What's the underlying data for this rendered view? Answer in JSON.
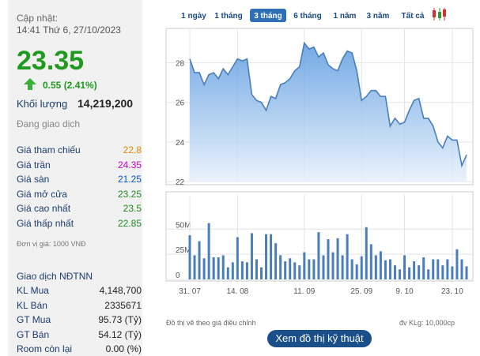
{
  "panel": {
    "updated_label": "Cập nhật:",
    "updated_time": "14:41 Thứ 6, 27/10/2023",
    "price": "23.35",
    "change": "0.55 (2.41%)",
    "volume_label": "Khối lượng",
    "volume": "14,219,200",
    "status": "Đang giao dịch",
    "prices": [
      [
        "Giá tham chiếu",
        "22.8"
      ],
      [
        "Giá trần",
        "24.35"
      ],
      [
        "Giá sàn",
        "21.25"
      ],
      [
        "Giá mở cửa",
        "23.25"
      ],
      [
        "Giá cao nhất",
        "23.5"
      ],
      [
        "Giá thấp nhất",
        "22.85"
      ]
    ],
    "unit": "Đơn vị giá: 1000 VNĐ",
    "foreign_title": "Giao dịch NĐTNN",
    "foreign": [
      [
        "KL Mua",
        "4,148,700"
      ],
      [
        "KL Bán",
        "2335671"
      ],
      [
        "GT Mua",
        "95.73 (Tỷ)"
      ],
      [
        "GT Bán",
        "54.12 (Tỷ)"
      ],
      [
        "Room còn lại",
        "0.00 (%)"
      ]
    ]
  },
  "tabs": [
    "1 ngày",
    "1 tháng",
    "3 tháng",
    "6 tháng",
    "1 năm",
    "3 năm",
    "Tất cả"
  ],
  "chart_data": [
    {
      "type": "area",
      "color": "#4a7ebb",
      "ylim": [
        22,
        29.7
      ],
      "yticks": [
        22,
        24,
        26,
        28
      ],
      "values": [
        28.2,
        27.5,
        27.5,
        26.9,
        27.4,
        27.5,
        27.2,
        27.7,
        27.4,
        27.8,
        28.2,
        28.1,
        28.2,
        26.4,
        26.1,
        26.0,
        25.6,
        26.3,
        26.2,
        26.9,
        27.0,
        27.2,
        27.6,
        27.8,
        29.0,
        28.7,
        28.8,
        28.3,
        28.5,
        27.9,
        27.7,
        27.6,
        28.2,
        28.6,
        28.5,
        27.6,
        26.1,
        26.3,
        26.6,
        26.6,
        26.3,
        26.3,
        24.8,
        25.2,
        24.9,
        25.0,
        25.6,
        26.1,
        26.2,
        25.2,
        25.2,
        24.8,
        24.0,
        23.7,
        24.3,
        24.1,
        24.1,
        22.8,
        23.35
      ]
    },
    {
      "type": "bar",
      "color": "#4a7ebb",
      "ylim": [
        0,
        84
      ],
      "yticks": [
        0,
        {
          "value": 25,
          "label": "25M"
        },
        {
          "value": 50,
          "label": "50M"
        }
      ],
      "categories": [
        "31. 07",
        null,
        null,
        null,
        null,
        null,
        null,
        null,
        null,
        null,
        "14. 08",
        null,
        null,
        null,
        null,
        null,
        null,
        null,
        null,
        null,
        null,
        null,
        null,
        null,
        "11. 09",
        null,
        null,
        null,
        null,
        null,
        null,
        null,
        null,
        null,
        null,
        null,
        "25. 09",
        null,
        null,
        null,
        null,
        null,
        null,
        null,
        null,
        "9. 10",
        null,
        null,
        null,
        null,
        null,
        null,
        null,
        null,
        null,
        "23. 10",
        null,
        null,
        null
      ],
      "values": [
        44,
        24,
        38,
        21,
        56,
        22,
        22,
        24,
        12,
        17,
        42,
        18,
        17,
        46,
        20,
        12,
        45,
        45,
        36,
        24,
        18,
        21,
        17,
        14,
        27,
        20,
        20,
        47,
        24,
        40,
        27,
        41,
        24,
        45,
        20,
        15,
        23,
        52,
        35,
        24,
        28,
        19,
        20,
        14,
        10,
        24,
        12,
        18,
        14,
        22,
        10,
        20,
        20,
        14,
        20,
        13,
        30,
        20,
        13
      ]
    }
  ],
  "footer": {
    "note": "Đồ thị vẽ theo giá điều chỉnh",
    "unit": "đv KLg: 10,000cp",
    "button": "Xem đồ thị kỹ thuật"
  }
}
